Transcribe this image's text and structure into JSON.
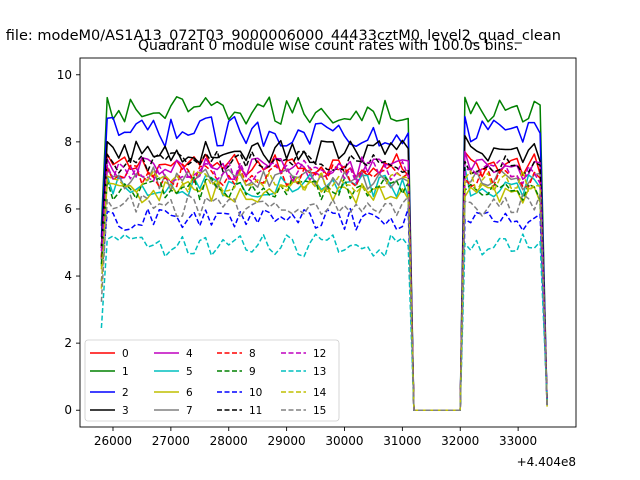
{
  "figure": {
    "suptitle": "n file: modeM0/AS1A13_072T03_9000006000_44433cztM0_level2_quad_clean",
    "title": "Quadrant 0 module wise count rates with 100.0s bins.",
    "x_offset_label": "+4.404e8"
  },
  "chart_data": {
    "type": "line",
    "title": "Quadrant 0 module wise count rates with 100.0s bins.",
    "xlabel": "",
    "ylabel": "",
    "x_offset": 440400000,
    "xlim": [
      25430,
      34000
    ],
    "ylim": [
      -0.5,
      10.5
    ],
    "xticks": [
      26000,
      27000,
      28000,
      29000,
      30000,
      31000,
      32000,
      33000
    ],
    "yticks": [
      0,
      2,
      4,
      6,
      8,
      10
    ],
    "grid": false,
    "legend": {
      "placement": "lower-left",
      "columns": 4
    },
    "segments": [
      {
        "x_start": 25800,
        "x_end": 31100
      },
      {
        "x_start": 32080,
        "x_end": 33430
      }
    ],
    "gap": {
      "x_start": 31200,
      "x_end": 32000,
      "value": 0
    },
    "series": [
      {
        "name": "0",
        "color": "#ff0000",
        "dash": "solid",
        "mean": 7.3
      },
      {
        "name": "1",
        "color": "#008000",
        "dash": "solid",
        "mean": 8.9
      },
      {
        "name": "2",
        "color": "#0000ff",
        "dash": "solid",
        "mean": 8.3
      },
      {
        "name": "3",
        "color": "#000000",
        "dash": "solid",
        "mean": 7.7
      },
      {
        "name": "4",
        "color": "#bf00bf",
        "dash": "solid",
        "mean": 7.2
      },
      {
        "name": "5",
        "color": "#00bfbf",
        "dash": "solid",
        "mean": 6.7
      },
      {
        "name": "6",
        "color": "#bfbf00",
        "dash": "solid",
        "mean": 6.5
      },
      {
        "name": "7",
        "color": "#808080",
        "dash": "solid",
        "mean": 6.9
      },
      {
        "name": "8",
        "color": "#ff0000",
        "dash": "dashed",
        "mean": 7.0
      },
      {
        "name": "9",
        "color": "#008000",
        "dash": "dashed",
        "mean": 6.6
      },
      {
        "name": "10",
        "color": "#0000ff",
        "dash": "dashed",
        "mean": 5.7
      },
      {
        "name": "11",
        "color": "#000000",
        "dash": "dashed",
        "mean": 7.4
      },
      {
        "name": "12",
        "color": "#bf00bf",
        "dash": "dashed",
        "mean": 7.1
      },
      {
        "name": "13",
        "color": "#00bfbf",
        "dash": "dashed",
        "mean": 4.9
      },
      {
        "name": "14",
        "color": "#bfbf00",
        "dash": "dashed",
        "mean": 6.8
      },
      {
        "name": "15",
        "color": "#808080",
        "dash": "dashed",
        "mean": 6.1
      }
    ]
  }
}
